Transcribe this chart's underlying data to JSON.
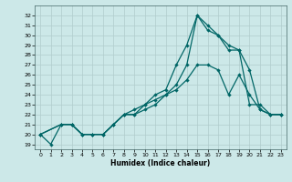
{
  "xlabel": "Humidex (Indice chaleur)",
  "background_color": "#cce8e8",
  "grid_color": "#b0cccc",
  "line_color": "#006666",
  "xlim": [
    -0.5,
    23.5
  ],
  "ylim": [
    18.5,
    33.0
  ],
  "xticks": [
    0,
    1,
    2,
    3,
    4,
    5,
    6,
    7,
    8,
    9,
    10,
    11,
    12,
    13,
    14,
    15,
    16,
    17,
    18,
    19,
    20,
    21,
    22,
    23
  ],
  "yticks": [
    19,
    20,
    21,
    22,
    23,
    24,
    25,
    26,
    27,
    28,
    29,
    30,
    31,
    32
  ],
  "line1_x": [
    0,
    1,
    2,
    3,
    4,
    5,
    6,
    7,
    8,
    9,
    10,
    11,
    12,
    13,
    14,
    15,
    16,
    17,
    18,
    19,
    20,
    21,
    22,
    23
  ],
  "line1_y": [
    20,
    19,
    21,
    21,
    20,
    20,
    20,
    21,
    22,
    22.5,
    23,
    24,
    24.5,
    27,
    29,
    32,
    31,
    30,
    29,
    28.5,
    23,
    23,
    22,
    22
  ],
  "line2_x": [
    0,
    2,
    3,
    4,
    5,
    6,
    7,
    8,
    9,
    10,
    11,
    12,
    13,
    14,
    15,
    16,
    17,
    18,
    19,
    20,
    21,
    22,
    23
  ],
  "line2_y": [
    20,
    21,
    21,
    20,
    20,
    20,
    21,
    22,
    22,
    23,
    23.5,
    24,
    25,
    27,
    32,
    30.5,
    30,
    28.5,
    28.5,
    26.5,
    22.5,
    22,
    22
  ],
  "line3_x": [
    0,
    2,
    3,
    4,
    5,
    6,
    7,
    8,
    9,
    10,
    11,
    12,
    13,
    14,
    15,
    16,
    17,
    18,
    19,
    20,
    21,
    22,
    23
  ],
  "line3_y": [
    20,
    21,
    21,
    20,
    20,
    20,
    21,
    22,
    22,
    22.5,
    23,
    24,
    24.5,
    25.5,
    27,
    27,
    26.5,
    24,
    26,
    24,
    22.5,
    22,
    22
  ]
}
